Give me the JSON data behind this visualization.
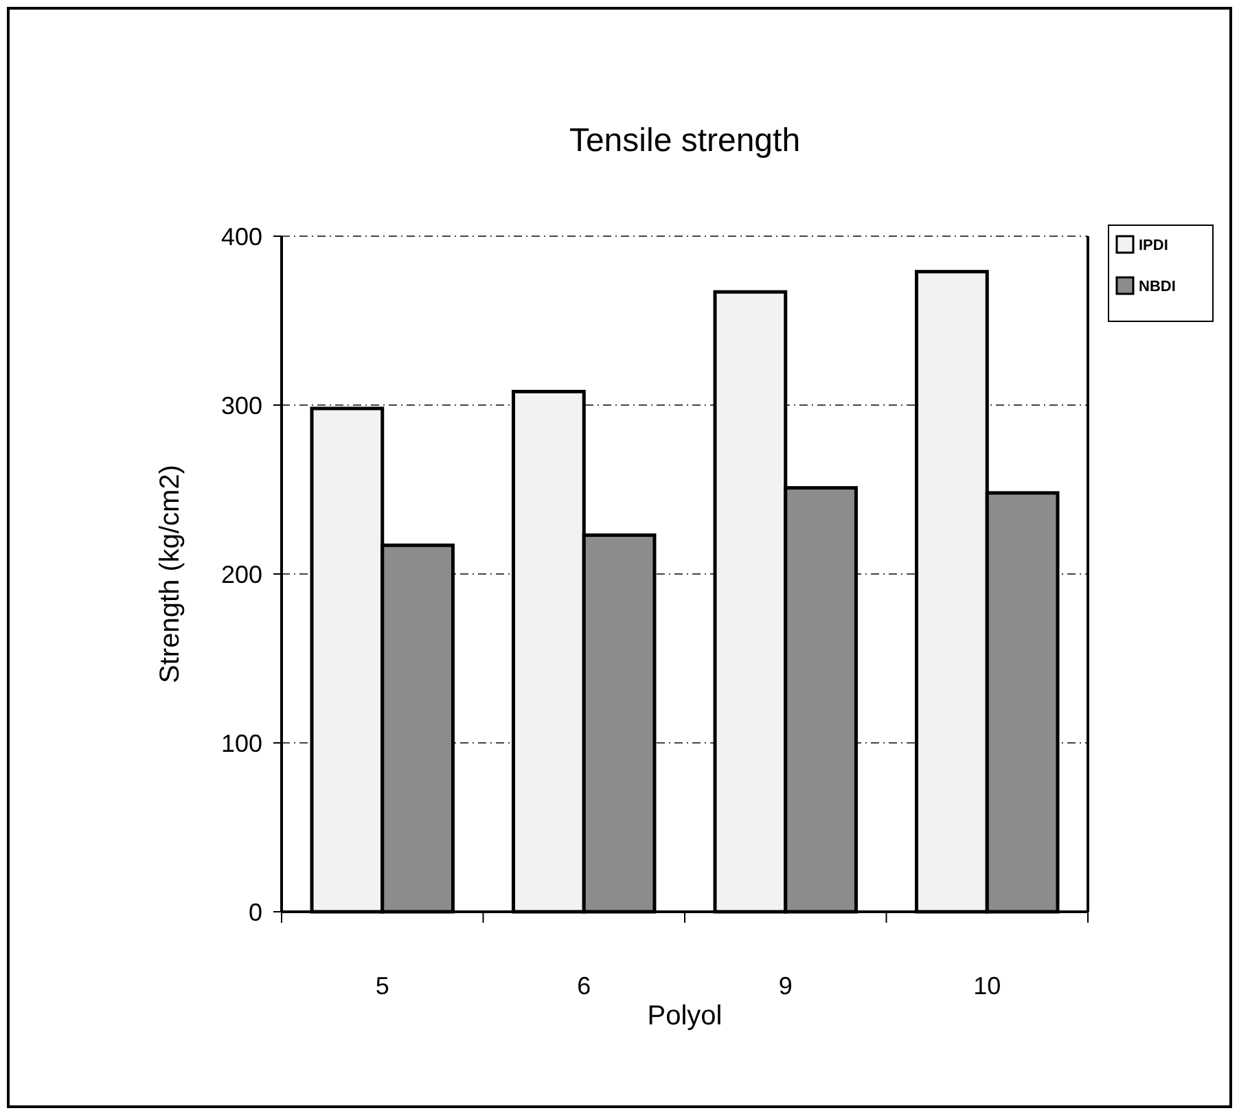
{
  "chart_data": {
    "type": "bar",
    "title": "Tensile strength",
    "xlabel": "Polyol",
    "ylabel": "Strength (kg/cm2)",
    "categories": [
      "5",
      "6",
      "9",
      "10"
    ],
    "series": [
      {
        "name": "IPDI",
        "color": "#f2f2f2",
        "values": [
          298,
          308,
          367,
          379
        ]
      },
      {
        "name": "NBDI",
        "color": "#8c8c8c",
        "values": [
          217,
          223,
          251,
          248
        ]
      }
    ],
    "ylim": [
      0,
      400
    ],
    "yticks": [
      0,
      100,
      200,
      300,
      400
    ],
    "grid": "y",
    "legend": "top right"
  }
}
